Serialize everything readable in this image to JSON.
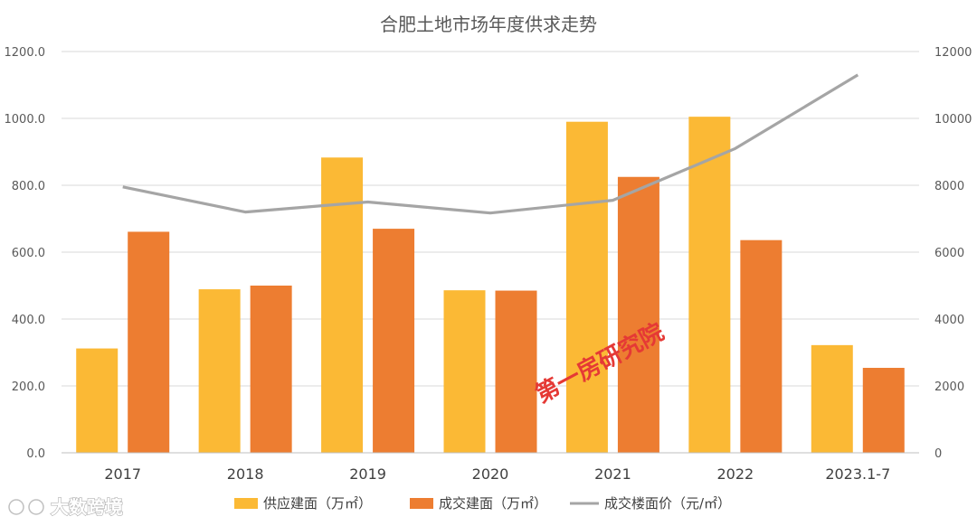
{
  "chart_data": {
    "type": "bar",
    "title": "合肥土地市场年度供求走势",
    "categories": [
      "2017",
      "2018",
      "2019",
      "2020",
      "2021",
      "2022",
      "2023.1-7"
    ],
    "series": [
      {
        "name": "供应建面（万㎡）",
        "kind": "bar",
        "axis": "left",
        "color": "#FBB935",
        "values": [
          312,
          489,
          883,
          486,
          990,
          1005,
          322
        ]
      },
      {
        "name": "成交建面（万㎡）",
        "kind": "bar",
        "axis": "left",
        "color": "#ED7D31",
        "values": [
          661,
          500,
          670,
          485,
          825,
          636,
          254
        ]
      },
      {
        "name": "成交楼面价（元/㎡）",
        "kind": "line",
        "axis": "right",
        "color": "#A5A5A5",
        "values": [
          7950,
          7200,
          7500,
          7170,
          7550,
          9100,
          11300
        ]
      }
    ],
    "y_left": {
      "min": 0,
      "max": 1200,
      "step": 200,
      "ticks": [
        "0.0",
        "200.0",
        "400.0",
        "600.0",
        "800.0",
        "1000.0",
        "1200.0"
      ]
    },
    "y_right": {
      "min": 0,
      "max": 12000,
      "step": 2000,
      "ticks": [
        "0",
        "2000",
        "4000",
        "6000",
        "8000",
        "10000",
        "12000"
      ]
    },
    "grid": true,
    "legend": "bottom",
    "annotation": "第一房研究院"
  },
  "brand": "大数跨境"
}
